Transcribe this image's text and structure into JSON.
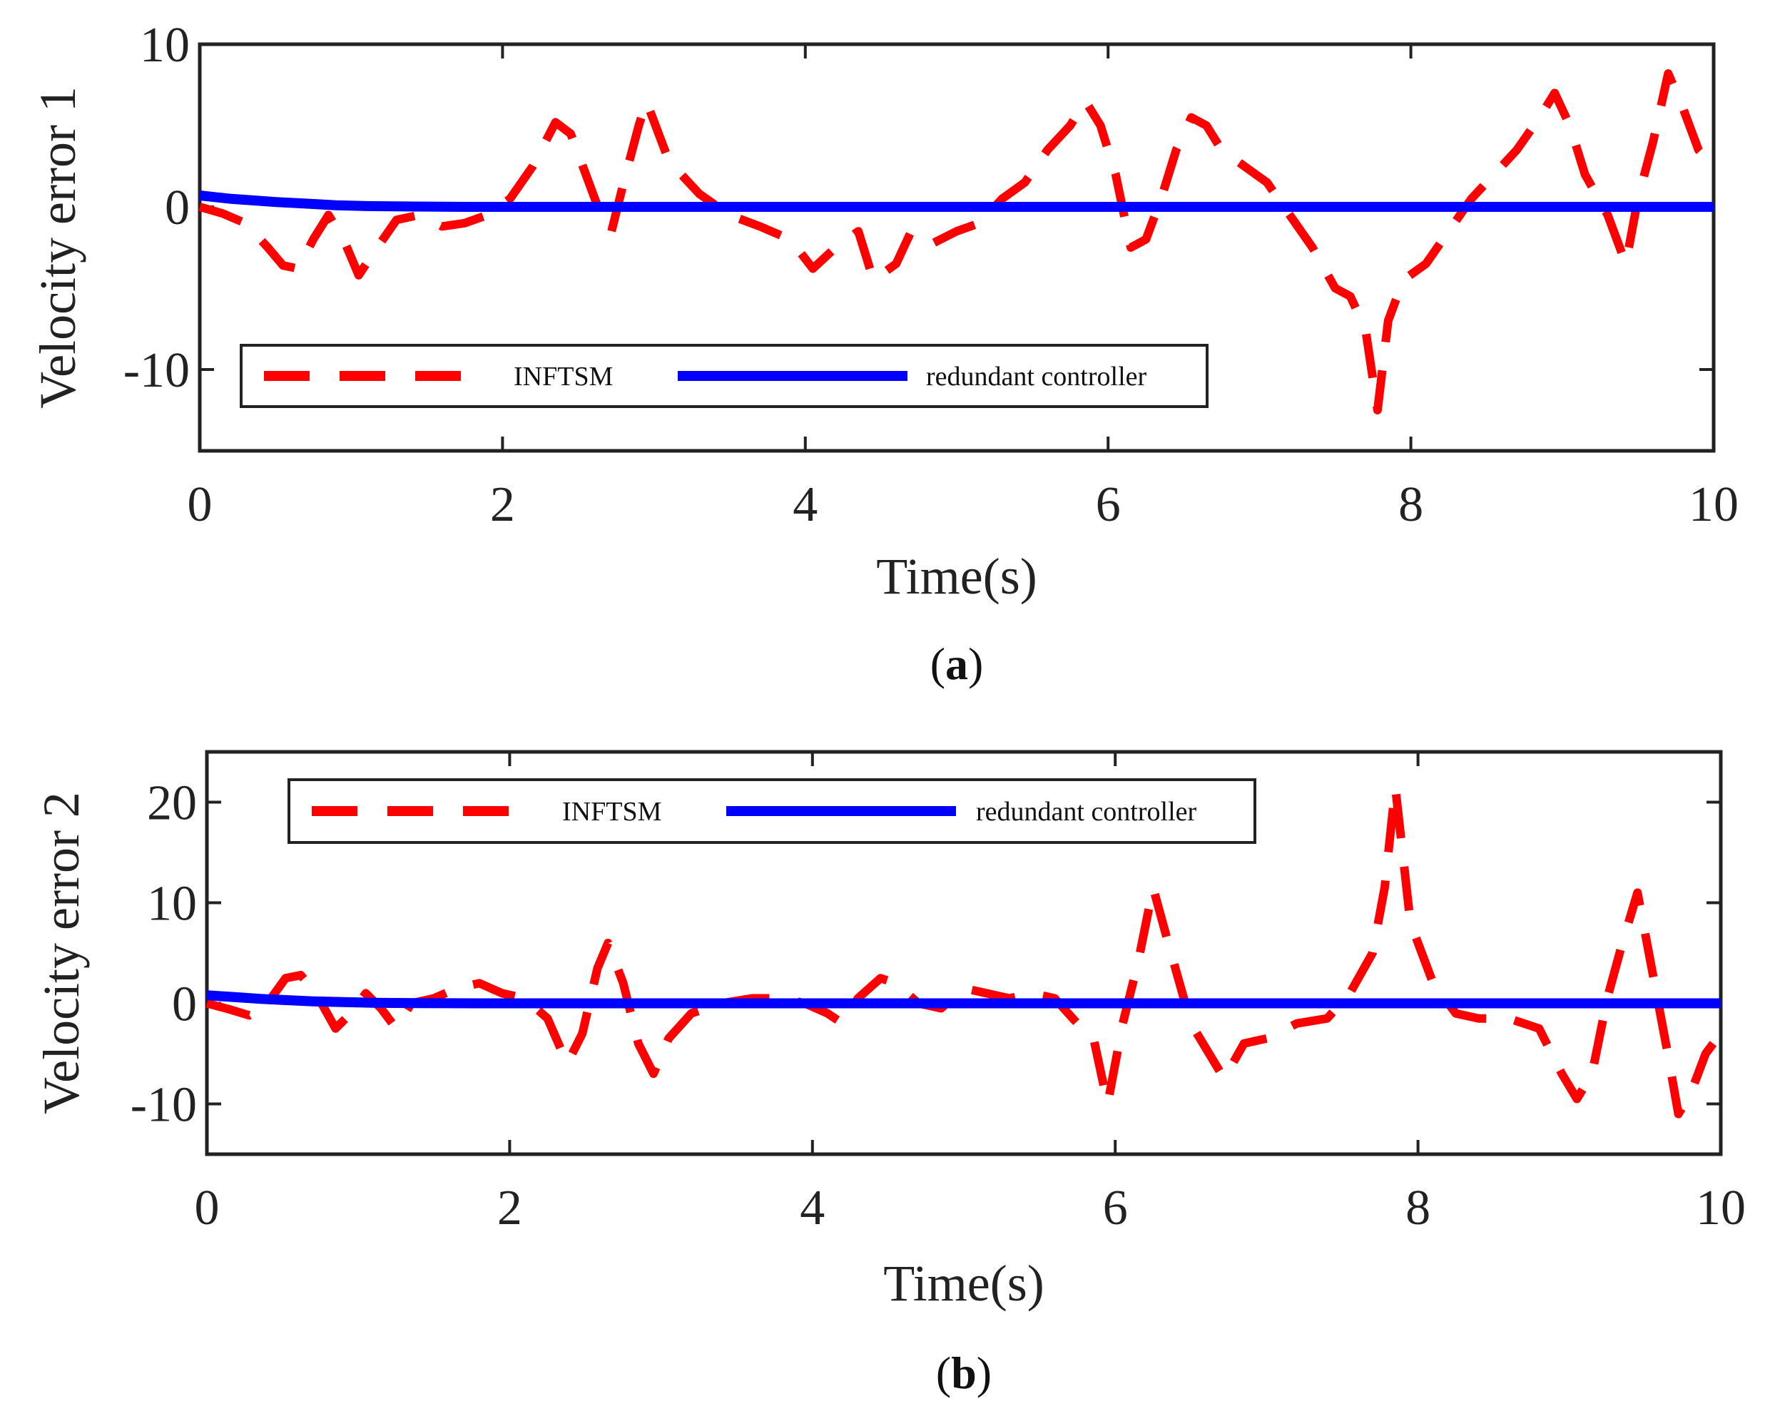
{
  "colors": {
    "infsm": "#ff0000",
    "redundant": "#0000ff",
    "axis": "#222222"
  },
  "chart_data": [
    {
      "type": "line",
      "panel": "a",
      "caption_open": "(",
      "caption_letter": "a",
      "caption_close": ")",
      "xlabel": "Time(s)",
      "ylabel": "Velocity error 1",
      "xlim": [
        0,
        10
      ],
      "ylim": [
        -15,
        10
      ],
      "xticks": [
        0,
        2,
        4,
        6,
        8,
        10
      ],
      "xtick_labels": [
        "0",
        "2",
        "4",
        "6",
        "8",
        "10"
      ],
      "yticks": [
        -10,
        0,
        10
      ],
      "ytick_labels": [
        "-10",
        "0",
        "10"
      ],
      "legend_position": "bottom-left",
      "series": [
        {
          "name": "INFTSM",
          "style": "dashed",
          "x": [
            0,
            0.15,
            0.3,
            0.45,
            0.55,
            0.65,
            0.75,
            0.85,
            0.95,
            1.05,
            1.15,
            1.3,
            1.45,
            1.6,
            1.75,
            1.9,
            2.05,
            2.2,
            2.35,
            2.45,
            2.55,
            2.65,
            2.72,
            2.8,
            2.9,
            2.95,
            3.1,
            3.3,
            3.5,
            3.7,
            3.9,
            4.05,
            4.2,
            4.35,
            4.45,
            4.6,
            4.7,
            4.85,
            5.0,
            5.15,
            5.3,
            5.45,
            5.6,
            5.75,
            5.85,
            5.95,
            6.05,
            6.15,
            6.25,
            6.35,
            6.45,
            6.55,
            6.65,
            6.75,
            6.9,
            7.05,
            7.2,
            7.35,
            7.5,
            7.6,
            7.7,
            7.78,
            7.85,
            7.95,
            8.1,
            8.25,
            8.4,
            8.55,
            8.7,
            8.85,
            8.95,
            9.05,
            9.15,
            9.3,
            9.42,
            9.5,
            9.6,
            9.7,
            9.8,
            9.9,
            10.0
          ],
          "y": [
            0,
            -0.4,
            -1.0,
            -2.5,
            -3.6,
            -3.8,
            -2.0,
            -0.5,
            -2.0,
            -4.2,
            -2.8,
            -0.8,
            -0.5,
            -1.2,
            -1.0,
            -0.5,
            0.5,
            2.5,
            5.2,
            4.5,
            2.0,
            -0.5,
            -1.5,
            1.5,
            5.0,
            6.5,
            2.8,
            0.8,
            -0.5,
            -1.2,
            -2.0,
            -3.8,
            -2.5,
            -1.5,
            -4.5,
            -3.5,
            -1.5,
            -2.2,
            -1.5,
            -1.0,
            0.5,
            1.5,
            3.5,
            5.0,
            6.5,
            5.0,
            2.0,
            -2.5,
            -2.0,
            0.5,
            3.5,
            5.5,
            5.0,
            3.5,
            2.5,
            1.5,
            -0.5,
            -2.5,
            -5.0,
            -5.5,
            -7.5,
            -12.5,
            -7.0,
            -4.5,
            -3.5,
            -1.5,
            0.5,
            2.0,
            3.5,
            5.5,
            7.0,
            5.0,
            2.0,
            -0.5,
            -3.5,
            0.5,
            4.0,
            8.2,
            6.0,
            3.5,
            2.5
          ]
        },
        {
          "name": "redundant controller",
          "style": "solid",
          "x": [
            0,
            0.1,
            0.2,
            0.35,
            0.5,
            0.7,
            0.9,
            1.1,
            1.4,
            1.8,
            2.5,
            4.0,
            6.0,
            8.0,
            10.0
          ],
          "y": [
            0.7,
            0.6,
            0.5,
            0.4,
            0.3,
            0.2,
            0.1,
            0.05,
            0.02,
            0.0,
            0.0,
            0.0,
            0.0,
            0.0,
            0.0
          ]
        }
      ]
    },
    {
      "type": "line",
      "panel": "b",
      "caption_open": "(",
      "caption_letter": "b",
      "caption_close": ")",
      "xlabel": "Time(s)",
      "ylabel": "Velocity error 2",
      "xlim": [
        0,
        10
      ],
      "ylim": [
        -15,
        25
      ],
      "xticks": [
        0,
        2,
        4,
        6,
        8,
        10
      ],
      "xtick_labels": [
        "0",
        "2",
        "4",
        "6",
        "8",
        "10"
      ],
      "yticks": [
        -10,
        0,
        10,
        20
      ],
      "ytick_labels": [
        "-10",
        "0",
        "10",
        "20"
      ],
      "legend_position": "top-left",
      "series": [
        {
          "name": "INFTSM",
          "style": "dashed",
          "x": [
            0,
            0.15,
            0.28,
            0.4,
            0.52,
            0.62,
            0.72,
            0.85,
            0.95,
            1.05,
            1.15,
            1.25,
            1.35,
            1.5,
            1.65,
            1.8,
            1.95,
            2.1,
            2.25,
            2.38,
            2.48,
            2.58,
            2.65,
            2.75,
            2.85,
            2.95,
            3.05,
            3.2,
            3.4,
            3.6,
            3.8,
            3.95,
            4.1,
            4.2,
            4.3,
            4.45,
            4.55,
            4.7,
            4.85,
            5.0,
            5.15,
            5.3,
            5.45,
            5.6,
            5.75,
            5.85,
            5.95,
            6.05,
            6.15,
            6.25,
            6.35,
            6.5,
            6.62,
            6.72,
            6.85,
            7.0,
            7.2,
            7.4,
            7.55,
            7.7,
            7.78,
            7.85,
            7.95,
            8.1,
            8.25,
            8.4,
            8.6,
            8.8,
            8.95,
            9.05,
            9.15,
            9.25,
            9.35,
            9.45,
            9.55,
            9.65,
            9.72,
            9.8,
            9.9,
            10.0
          ],
          "y": [
            0,
            -0.6,
            -1.2,
            0,
            2.5,
            2.8,
            1.0,
            -2.5,
            -1.0,
            1.0,
            -0.5,
            -2.5,
            0,
            0.5,
            1.5,
            2.0,
            1.0,
            0.5,
            -1.5,
            -6.0,
            -3.0,
            3.5,
            6.0,
            2.0,
            -4.0,
            -7.0,
            -3.5,
            -1.0,
            0,
            0.5,
            0.5,
            0,
            -1.0,
            -2.0,
            0.5,
            2.5,
            2.0,
            0,
            -0.5,
            1.5,
            1.0,
            0.5,
            1.0,
            0.5,
            -2.0,
            -3.0,
            -10.0,
            -2.0,
            4.0,
            11.5,
            6.0,
            -2.0,
            -5.0,
            -7.5,
            -4.0,
            -3.5,
            -2.0,
            -1.5,
            1.0,
            5.0,
            11.5,
            21.5,
            8.0,
            2.0,
            -1.0,
            -1.5,
            -1.5,
            -2.5,
            -7.0,
            -9.5,
            -7.0,
            0.5,
            6.0,
            11.0,
            3.0,
            -5.0,
            -11.0,
            -9.0,
            -5.0,
            -3.0
          ]
        },
        {
          "name": "redundant controller",
          "style": "solid",
          "x": [
            0,
            0.1,
            0.2,
            0.35,
            0.5,
            0.7,
            0.9,
            1.1,
            1.4,
            1.8,
            2.5,
            4.0,
            6.0,
            8.0,
            10.0
          ],
          "y": [
            0.8,
            0.7,
            0.6,
            0.45,
            0.33,
            0.2,
            0.12,
            0.06,
            0.02,
            0.0,
            0.0,
            0.0,
            0.0,
            0.0,
            0.0
          ]
        }
      ]
    }
  ]
}
